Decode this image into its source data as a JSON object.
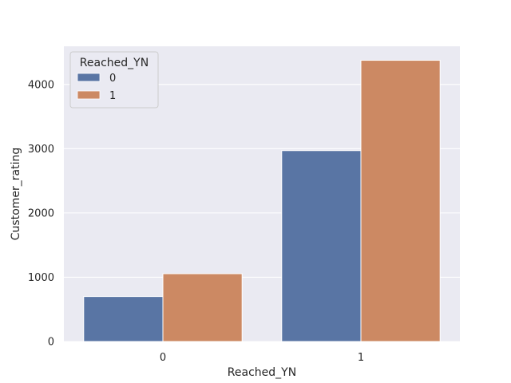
{
  "chart_data": {
    "type": "bar",
    "title": "",
    "xlabel": "Reached_YN",
    "ylabel": "Customer_rating",
    "categories": [
      "0",
      "1"
    ],
    "series": [
      {
        "name": "0",
        "values": [
          700,
          2970
        ],
        "color": "#5975a4"
      },
      {
        "name": "1",
        "values": [
          1055,
          4375
        ],
        "color": "#cc8963"
      }
    ],
    "ylim": [
      0,
      4593
    ],
    "yticks": [
      0,
      1000,
      2000,
      3000,
      4000
    ],
    "grid": true,
    "legend": {
      "title": "Reached_YN",
      "placement": "top-left"
    },
    "background": "#eaeaf2"
  }
}
